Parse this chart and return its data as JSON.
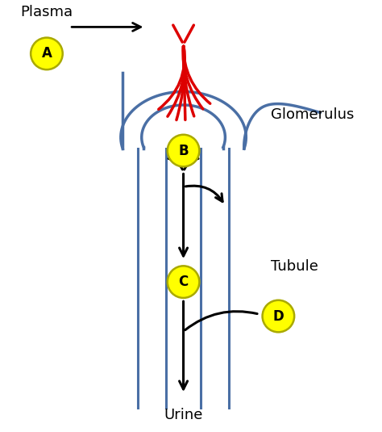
{
  "background_color": "#ffffff",
  "blue_color": "#4a6fa5",
  "red_color": "#dd0000",
  "black_color": "#000000",
  "yellow_color": "#ffff00",
  "yellow_edge": "#aaaa00",
  "label_A": "A",
  "label_B": "B",
  "label_C": "C",
  "label_D": "D",
  "label_plasma": "Plasma",
  "label_glomerulus": "Glomerulus",
  "label_tubule": "Tubule",
  "label_urine": "Urine",
  "figsize": [
    4.74,
    5.35
  ],
  "dpi": 100
}
